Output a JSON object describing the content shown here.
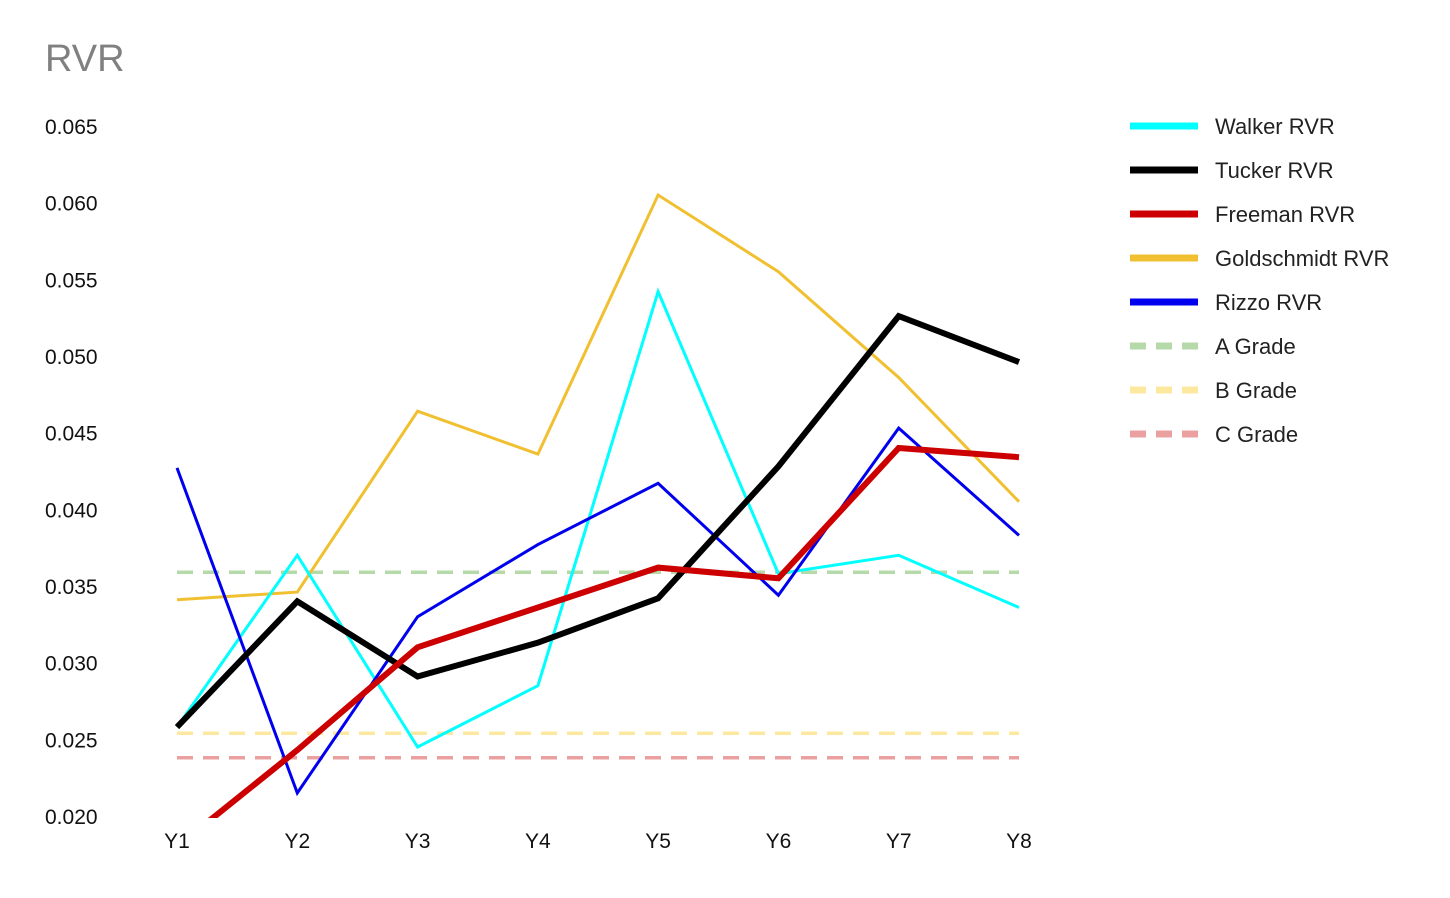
{
  "chart_data": {
    "type": "line",
    "title": "RVR",
    "xlabel": "",
    "ylabel": "",
    "categories": [
      "Y1",
      "Y2",
      "Y3",
      "Y4",
      "Y5",
      "Y6",
      "Y7",
      "Y8"
    ],
    "ylim": [
      0.02,
      0.065
    ],
    "yticks": [
      "0.065",
      "0.060",
      "0.055",
      "0.050",
      "0.045",
      "0.040",
      "0.035",
      "0.030",
      "0.025",
      "0.020"
    ],
    "grid": false,
    "legend_position": "right",
    "series": [
      {
        "name": "Walker RVR",
        "color": "#00FFFF",
        "style": "solid",
        "weight": "thin",
        "values": [
          0.0258,
          0.037,
          0.0245,
          0.0285,
          0.0542,
          0.0358,
          0.037,
          0.0336
        ]
      },
      {
        "name": "Tucker RVR",
        "color": "#000000",
        "style": "solid",
        "weight": "thick",
        "values": [
          0.0258,
          0.034,
          0.0291,
          0.0313,
          0.0342,
          0.0428,
          0.0526,
          0.0496
        ]
      },
      {
        "name": "Freeman RVR",
        "color": "#CC0000",
        "style": "solid",
        "weight": "thick",
        "values": [
          null,
          0.0243,
          0.031,
          0.0336,
          0.0362,
          0.0355,
          0.044,
          0.0434
        ],
        "note_below_axis_start": 0.018
      },
      {
        "name": "Goldschmidt RVR",
        "color": "#F0C030",
        "style": "solid",
        "weight": "thin",
        "values": [
          0.0341,
          0.0346,
          0.0464,
          0.0436,
          0.0605,
          0.0555,
          0.0486,
          0.0405
        ]
      },
      {
        "name": "Rizzo RVR",
        "color": "#0000EE",
        "style": "solid",
        "weight": "thin",
        "values": [
          0.0427,
          0.0215,
          0.033,
          0.0377,
          0.0417,
          0.0344,
          0.0453,
          0.0383
        ]
      },
      {
        "name": "A Grade",
        "color": "#B5D9A8",
        "style": "dashed",
        "weight": "medium",
        "values": [
          0.0359,
          0.0359,
          0.0359,
          0.0359,
          0.0359,
          0.0359,
          0.0359,
          0.0359
        ]
      },
      {
        "name": "B Grade",
        "color": "#FDE8A0",
        "style": "dashed",
        "weight": "medium",
        "values": [
          0.0254,
          0.0254,
          0.0254,
          0.0254,
          0.0254,
          0.0254,
          0.0254,
          0.0254
        ]
      },
      {
        "name": "C Grade",
        "color": "#EBA0A0",
        "style": "dashed",
        "weight": "medium",
        "values": [
          0.0238,
          0.0238,
          0.0238,
          0.0238,
          0.0238,
          0.0238,
          0.0238,
          0.0238
        ]
      }
    ]
  }
}
